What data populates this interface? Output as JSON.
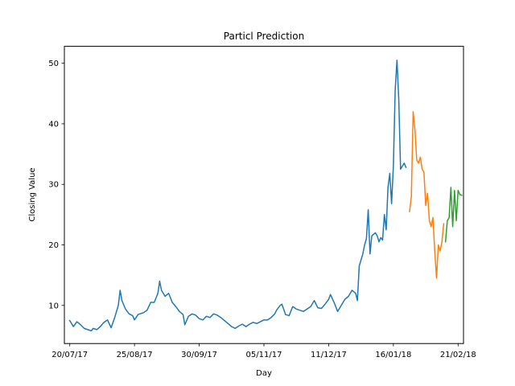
{
  "chart_data": {
    "type": "line",
    "title": "Particl Prediction",
    "xlabel": "Day",
    "ylabel": "Closing Value",
    "x_axis": {
      "type": "date",
      "range": [
        "2017-07-17",
        "2018-02-24"
      ],
      "ticks": [
        {
          "date": "2017-07-20",
          "label": "20/07/17"
        },
        {
          "date": "2017-08-25",
          "label": "25/08/17"
        },
        {
          "date": "2017-09-30",
          "label": "30/09/17"
        },
        {
          "date": "2017-11-05",
          "label": "05/11/17"
        },
        {
          "date": "2017-12-11",
          "label": "11/12/17"
        },
        {
          "date": "2018-01-16",
          "label": "16/01/18"
        },
        {
          "date": "2018-02-21",
          "label": "21/02/18"
        }
      ]
    },
    "y_axis": {
      "range": [
        3.7,
        52.8
      ],
      "ticks": [
        {
          "value": 10,
          "label": "10"
        },
        {
          "value": 20,
          "label": "20"
        },
        {
          "value": 30,
          "label": "30"
        },
        {
          "value": 40,
          "label": "40"
        },
        {
          "value": 50,
          "label": "50"
        }
      ]
    },
    "grid": false,
    "legend": "none",
    "series": [
      {
        "color": "#1f77b4",
        "points": [
          [
            "2017-07-20",
            7.5
          ],
          [
            "2017-07-22",
            6.5
          ],
          [
            "2017-07-24",
            7.3
          ],
          [
            "2017-07-26",
            6.8
          ],
          [
            "2017-07-28",
            6.2
          ],
          [
            "2017-07-30",
            6.0
          ],
          [
            "2017-08-01",
            5.8
          ],
          [
            "2017-08-02",
            6.2
          ],
          [
            "2017-08-04",
            6.0
          ],
          [
            "2017-08-06",
            6.5
          ],
          [
            "2017-08-08",
            7.2
          ],
          [
            "2017-08-10",
            7.6
          ],
          [
            "2017-08-12",
            6.3
          ],
          [
            "2017-08-14",
            8.0
          ],
          [
            "2017-08-16",
            10.0
          ],
          [
            "2017-08-17",
            12.5
          ],
          [
            "2017-08-18",
            10.8
          ],
          [
            "2017-08-20",
            9.4
          ],
          [
            "2017-08-22",
            8.6
          ],
          [
            "2017-08-24",
            8.3
          ],
          [
            "2017-08-25",
            7.6
          ],
          [
            "2017-08-27",
            8.5
          ],
          [
            "2017-08-30",
            8.8
          ],
          [
            "2017-09-01",
            9.2
          ],
          [
            "2017-09-03",
            10.5
          ],
          [
            "2017-09-05",
            10.5
          ],
          [
            "2017-09-07",
            12.0
          ],
          [
            "2017-09-08",
            14.0
          ],
          [
            "2017-09-09",
            12.5
          ],
          [
            "2017-09-11",
            11.5
          ],
          [
            "2017-09-13",
            12.0
          ],
          [
            "2017-09-15",
            10.5
          ],
          [
            "2017-09-17",
            9.8
          ],
          [
            "2017-09-19",
            9.0
          ],
          [
            "2017-09-21",
            8.5
          ],
          [
            "2017-09-22",
            6.8
          ],
          [
            "2017-09-24",
            8.2
          ],
          [
            "2017-09-26",
            8.6
          ],
          [
            "2017-09-28",
            8.4
          ],
          [
            "2017-09-30",
            7.8
          ],
          [
            "2017-10-02",
            7.6
          ],
          [
            "2017-10-04",
            8.2
          ],
          [
            "2017-10-06",
            8.0
          ],
          [
            "2017-10-08",
            8.6
          ],
          [
            "2017-10-10",
            8.4
          ],
          [
            "2017-10-12",
            8.0
          ],
          [
            "2017-10-14",
            7.5
          ],
          [
            "2017-10-16",
            7.0
          ],
          [
            "2017-10-18",
            6.5
          ],
          [
            "2017-10-20",
            6.2
          ],
          [
            "2017-10-22",
            6.6
          ],
          [
            "2017-10-24",
            6.9
          ],
          [
            "2017-10-26",
            6.5
          ],
          [
            "2017-10-28",
            6.9
          ],
          [
            "2017-10-30",
            7.2
          ],
          [
            "2017-11-01",
            7.0
          ],
          [
            "2017-11-03",
            7.3
          ],
          [
            "2017-11-05",
            7.6
          ],
          [
            "2017-11-07",
            7.6
          ],
          [
            "2017-11-09",
            8.0
          ],
          [
            "2017-11-11",
            8.6
          ],
          [
            "2017-11-12",
            9.2
          ],
          [
            "2017-11-14",
            10.0
          ],
          [
            "2017-11-15",
            10.2
          ],
          [
            "2017-11-17",
            8.5
          ],
          [
            "2017-11-19",
            8.3
          ],
          [
            "2017-11-21",
            9.8
          ],
          [
            "2017-11-23",
            9.4
          ],
          [
            "2017-11-25",
            9.2
          ],
          [
            "2017-11-27",
            9.0
          ],
          [
            "2017-11-29",
            9.4
          ],
          [
            "2017-12-01",
            9.8
          ],
          [
            "2017-12-03",
            10.8
          ],
          [
            "2017-12-05",
            9.6
          ],
          [
            "2017-12-07",
            9.5
          ],
          [
            "2017-12-09",
            10.2
          ],
          [
            "2017-12-11",
            11.0
          ],
          [
            "2017-12-12",
            11.8
          ],
          [
            "2017-12-14",
            10.5
          ],
          [
            "2017-12-16",
            9.0
          ],
          [
            "2017-12-18",
            10.0
          ],
          [
            "2017-12-20",
            11.0
          ],
          [
            "2017-12-22",
            11.5
          ],
          [
            "2017-12-24",
            12.5
          ],
          [
            "2017-12-26",
            12.0
          ],
          [
            "2017-12-27",
            10.8
          ],
          [
            "2017-12-28",
            16.5
          ],
          [
            "2017-12-30",
            18.5
          ],
          [
            "2017-12-31",
            20.0
          ],
          [
            "2018-01-01",
            21.0
          ],
          [
            "2018-01-02",
            25.8
          ],
          [
            "2018-01-03",
            18.5
          ],
          [
            "2018-01-04",
            21.5
          ],
          [
            "2018-01-06",
            22.0
          ],
          [
            "2018-01-07",
            21.5
          ],
          [
            "2018-01-08",
            20.5
          ],
          [
            "2018-01-09",
            21.2
          ],
          [
            "2018-01-10",
            20.8
          ],
          [
            "2018-01-11",
            25.0
          ],
          [
            "2018-01-12",
            22.5
          ],
          [
            "2018-01-13",
            29.5
          ],
          [
            "2018-01-14",
            31.8
          ],
          [
            "2018-01-15",
            26.8
          ],
          [
            "2018-01-16",
            33.0
          ],
          [
            "2018-01-17",
            45.5
          ],
          [
            "2018-01-18",
            50.5
          ],
          [
            "2018-01-19",
            44.0
          ],
          [
            "2018-01-20",
            32.5
          ],
          [
            "2018-01-21",
            33.0
          ],
          [
            "2018-01-22",
            33.5
          ],
          [
            "2018-01-23",
            32.8
          ]
        ]
      },
      {
        "color": "#ff7f0e",
        "points": [
          [
            "2018-01-25",
            25.5
          ],
          [
            "2018-01-26",
            28.0
          ],
          [
            "2018-01-27",
            42.0
          ],
          [
            "2018-01-28",
            39.0
          ],
          [
            "2018-01-29",
            34.0
          ],
          [
            "2018-01-30",
            33.5
          ],
          [
            "2018-01-31",
            34.5
          ],
          [
            "2018-02-01",
            32.5
          ],
          [
            "2018-02-02",
            32.0
          ],
          [
            "2018-02-03",
            26.5
          ],
          [
            "2018-02-04",
            28.5
          ],
          [
            "2018-02-05",
            24.0
          ],
          [
            "2018-02-06",
            23.0
          ],
          [
            "2018-02-07",
            24.5
          ],
          [
            "2018-02-08",
            19.0
          ],
          [
            "2018-02-09",
            14.5
          ],
          [
            "2018-02-10",
            20.0
          ],
          [
            "2018-02-11",
            19.0
          ],
          [
            "2018-02-12",
            20.5
          ],
          [
            "2018-02-13",
            23.5
          ]
        ]
      },
      {
        "color": "#2ca02c",
        "points": [
          [
            "2018-02-14",
            20.5
          ],
          [
            "2018-02-15",
            24.0
          ],
          [
            "2018-02-16",
            24.5
          ],
          [
            "2018-02-17",
            29.5
          ],
          [
            "2018-02-18",
            23.0
          ],
          [
            "2018-02-19",
            29.0
          ],
          [
            "2018-02-20",
            24.0
          ],
          [
            "2018-02-21",
            29.0
          ],
          [
            "2018-02-22",
            28.3
          ],
          [
            "2018-02-23",
            28.2
          ]
        ]
      }
    ]
  }
}
